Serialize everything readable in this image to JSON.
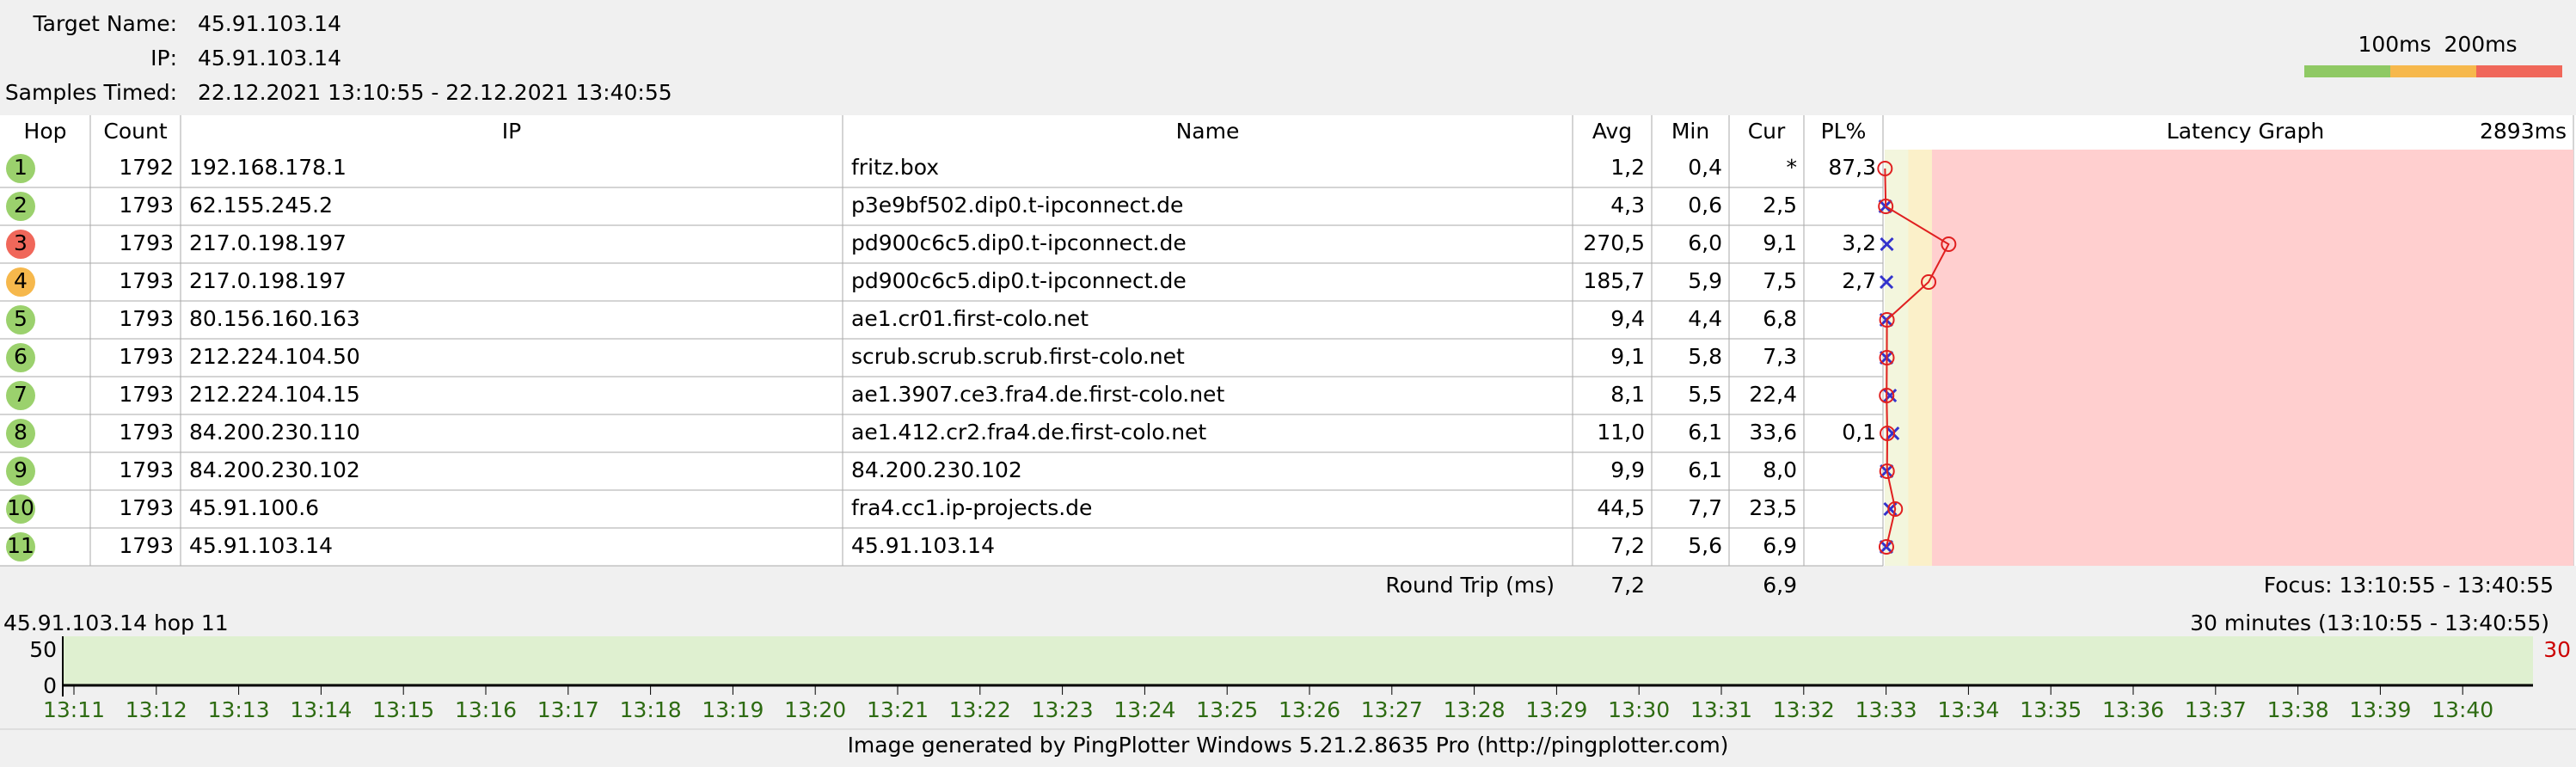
{
  "header": {
    "target_label": "Target Name:",
    "target": "45.91.103.14",
    "ip_label": "IP:",
    "ip": "45.91.103.14",
    "samples_label": "Samples Timed:",
    "samples": "22.12.2021 13:10:55 - 22.12.2021 13:40:55"
  },
  "legend": {
    "labels": [
      "100ms",
      "200ms"
    ],
    "colors": [
      "#8fc964",
      "#f6b84c",
      "#f0675a"
    ]
  },
  "table": {
    "columns": [
      "Hop",
      "Count",
      "IP",
      "Name",
      "Avg",
      "Min",
      "Cur",
      "PL%",
      "Latency Graph"
    ],
    "graph_max": {
      "value": 2893,
      "label": "2893ms"
    },
    "rows": [
      {
        "hop": "1",
        "color": "#9bd16d",
        "count": "1792",
        "ip": "192.168.178.1",
        "name": "fritz.box",
        "avg": "1,2",
        "min": "0,4",
        "cur": "*",
        "pl": "87,3"
      },
      {
        "hop": "2",
        "color": "#9bd16d",
        "count": "1793",
        "ip": "62.155.245.2",
        "name": "p3e9bf502.dip0.t-ipconnect.de",
        "avg": "4,3",
        "min": "0,6",
        "cur": "2,5",
        "pl": ""
      },
      {
        "hop": "3",
        "color": "#f0675a",
        "count": "1793",
        "ip": "217.0.198.197",
        "name": "pd900c6c5.dip0.t-ipconnect.de",
        "avg": "270,5",
        "min": "6,0",
        "cur": "9,1",
        "pl": "3,2"
      },
      {
        "hop": "4",
        "color": "#f6b84c",
        "count": "1793",
        "ip": "217.0.198.197",
        "name": "pd900c6c5.dip0.t-ipconnect.de",
        "avg": "185,7",
        "min": "5,9",
        "cur": "7,5",
        "pl": "2,7"
      },
      {
        "hop": "5",
        "color": "#9bd16d",
        "count": "1793",
        "ip": "80.156.160.163",
        "name": "ae1.cr01.first-colo.net",
        "avg": "9,4",
        "min": "4,4",
        "cur": "6,8",
        "pl": ""
      },
      {
        "hop": "6",
        "color": "#9bd16d",
        "count": "1793",
        "ip": "212.224.104.50",
        "name": "scrub.scrub.scrub.first-colo.net",
        "avg": "9,1",
        "min": "5,8",
        "cur": "7,3",
        "pl": ""
      },
      {
        "hop": "7",
        "color": "#9bd16d",
        "count": "1793",
        "ip": "212.224.104.15",
        "name": "ae1.3907.ce3.fra4.de.first-colo.net",
        "avg": "8,1",
        "min": "5,5",
        "cur": "22,4",
        "pl": ""
      },
      {
        "hop": "8",
        "color": "#9bd16d",
        "count": "1793",
        "ip": "84.200.230.110",
        "name": "ae1.412.cr2.fra4.de.first-colo.net",
        "avg": "11,0",
        "min": "6,1",
        "cur": "33,6",
        "pl": "0,1"
      },
      {
        "hop": "9",
        "color": "#9bd16d",
        "count": "1793",
        "ip": "84.200.230.102",
        "name": "84.200.230.102",
        "avg": "9,9",
        "min": "6,1",
        "cur": "8,0",
        "pl": ""
      },
      {
        "hop": "10",
        "color": "#9bd16d",
        "count": "1793",
        "ip": "45.91.100.6",
        "name": "fra4.cc1.ip-projects.de",
        "avg": "44,5",
        "min": "7,7",
        "cur": "23,5",
        "pl": ""
      },
      {
        "hop": "11",
        "color": "#9bd16d",
        "count": "1793",
        "ip": "45.91.103.14",
        "name": "45.91.103.14",
        "avg": "7,2",
        "min": "5,6",
        "cur": "6,9",
        "pl": ""
      }
    ],
    "round_trip": {
      "label": "Round Trip (ms)",
      "avg": "7,2",
      "cur": "6,9"
    },
    "focus": "Focus: 13:10:55 - 13:40:55"
  },
  "history": {
    "title": "45.91.103.14 hop 11",
    "range": "30 minutes (13:10:55 - 13:40:55)",
    "y_labels": [
      "50",
      "0"
    ],
    "right_label": "30",
    "times": [
      "13:11",
      "13:12",
      "13:13",
      "13:14",
      "13:15",
      "13:16",
      "13:17",
      "13:18",
      "13:19",
      "13:20",
      "13:21",
      "13:22",
      "13:23",
      "13:24",
      "13:25",
      "13:26",
      "13:27",
      "13:28",
      "13:29",
      "13:30",
      "13:31",
      "13:32",
      "13:33",
      "13:34",
      "13:35",
      "13:36",
      "13:37",
      "13:38",
      "13:39",
      "13:40"
    ]
  },
  "footer": "Image generated by PingPlotter Windows 5.21.2.8635 Pro (http://pingplotter.com)"
}
